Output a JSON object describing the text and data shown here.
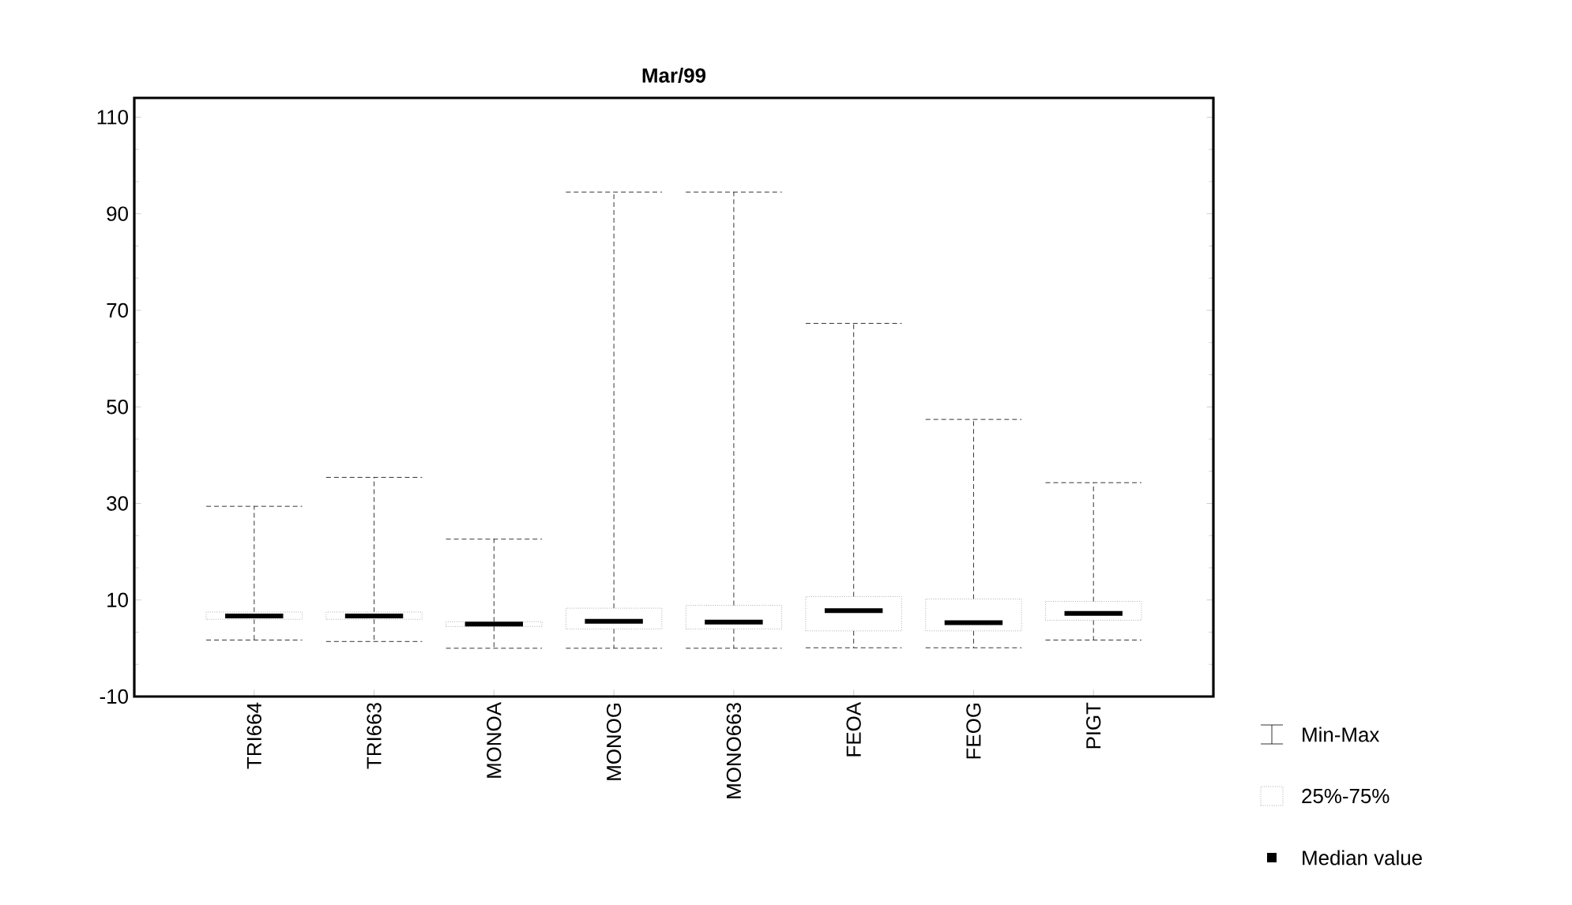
{
  "chart_data": {
    "type": "box",
    "title": "Mar/99",
    "categories": [
      "TRI664",
      "TRI663",
      "MONOA",
      "MONOG",
      "MONO663",
      "FEOA",
      "FEOG",
      "PIGT"
    ],
    "boxes": [
      {
        "low": 1.7,
        "q1": 6,
        "median": 6.7,
        "q3": 7.5,
        "high": 29.4
      },
      {
        "low": 1.4,
        "q1": 6,
        "median": 6.7,
        "q3": 7.5,
        "high": 35.4
      },
      {
        "low": 0,
        "q1": 4.5,
        "median": 5,
        "q3": 5.5,
        "high": 22.6
      },
      {
        "low": 0,
        "q1": 4,
        "median": 5.6,
        "q3": 8.3,
        "high": 94.5
      },
      {
        "low": 0,
        "q1": 4,
        "median": 5.4,
        "q3": 8.9,
        "high": 94.5
      },
      {
        "low": 0.1,
        "q1": 3.6,
        "median": 7.8,
        "q3": 10.7,
        "high": 67.3
      },
      {
        "low": 0.1,
        "q1": 3.6,
        "median": 5.3,
        "q3": 10.2,
        "high": 47.4
      },
      {
        "low": 1.7,
        "q1": 5.8,
        "median": 7.2,
        "q3": 9.7,
        "high": 34.3
      }
    ],
    "ylim": [
      -10,
      114
    ],
    "yticks": [
      -10,
      10,
      30,
      50,
      70,
      90,
      110
    ],
    "annotations": [
      "Min-Max",
      "25%-75%",
      "Median value"
    ]
  }
}
